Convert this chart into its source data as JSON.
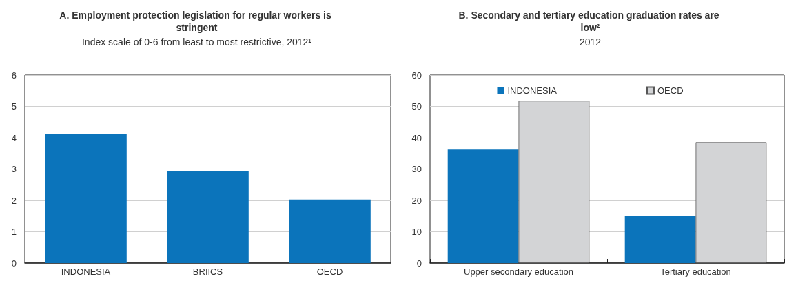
{
  "chart_data": [
    {
      "type": "bar",
      "title": "A. Employment protection legislation for regular workers is stringent",
      "subtitle": "Index scale of 0-6 from least to most restrictive, 2012¹",
      "categories": [
        "INDONESIA",
        "BRIICS",
        "OECD"
      ],
      "values": [
        4.12,
        2.94,
        2.03
      ],
      "color": "#0b74bb",
      "ylim": [
        0,
        6
      ],
      "yticks": [
        0,
        1,
        2,
        3,
        4,
        5,
        6
      ],
      "grid": "y"
    },
    {
      "type": "bar",
      "title": "B. Secondary and tertiary education graduation rates are low²",
      "subtitle": "2012",
      "categories": [
        "Upper secondary education",
        "Tertiary education"
      ],
      "series": [
        {
          "name": "INDONESIA",
          "color": "#0b74bb",
          "values": [
            36.2,
            15.0
          ]
        },
        {
          "name": "OECD",
          "color": "#d3d4d6",
          "values": [
            51.8,
            38.6
          ]
        }
      ],
      "ylim": [
        0,
        60
      ],
      "yticks": [
        0,
        10,
        20,
        30,
        40,
        50,
        60
      ],
      "grid": "y",
      "legend": "top"
    }
  ]
}
